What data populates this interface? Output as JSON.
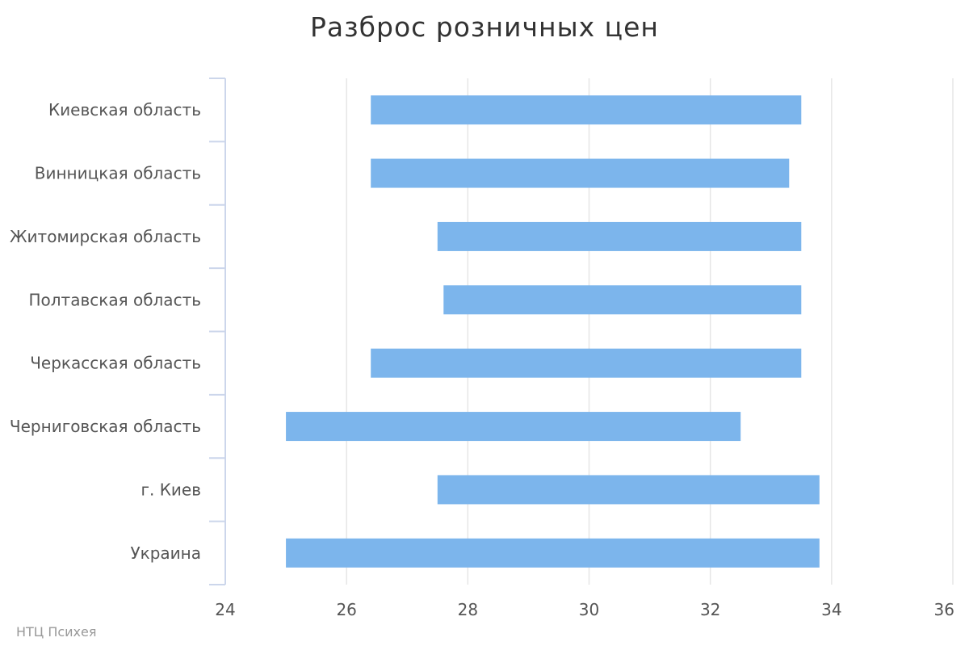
{
  "chart_data": {
    "type": "bar",
    "orientation": "horizontal",
    "subtype": "range",
    "title": "Разброс розничных цен",
    "xlabel": "",
    "ylabel": "",
    "categories": [
      "Киевская область",
      "Винницкая область",
      "Житомирская область",
      "Полтавская область",
      "Черкасская область",
      "Черниговская область",
      "г. Киев",
      "Украина"
    ],
    "series": [
      {
        "low": [
          26.4,
          26.4,
          27.5,
          27.6,
          26.4,
          25.0,
          27.5,
          25.0
        ],
        "high": [
          33.5,
          33.3,
          33.5,
          33.5,
          33.5,
          32.5,
          33.8,
          33.8
        ],
        "color": "#7cb5ec"
      }
    ],
    "xlim": [
      24,
      36
    ],
    "xticks": [
      "24",
      "26",
      "28",
      "30",
      "32",
      "34",
      "36"
    ],
    "grid": true,
    "legend": "none"
  },
  "credits": "НТЦ Психея"
}
